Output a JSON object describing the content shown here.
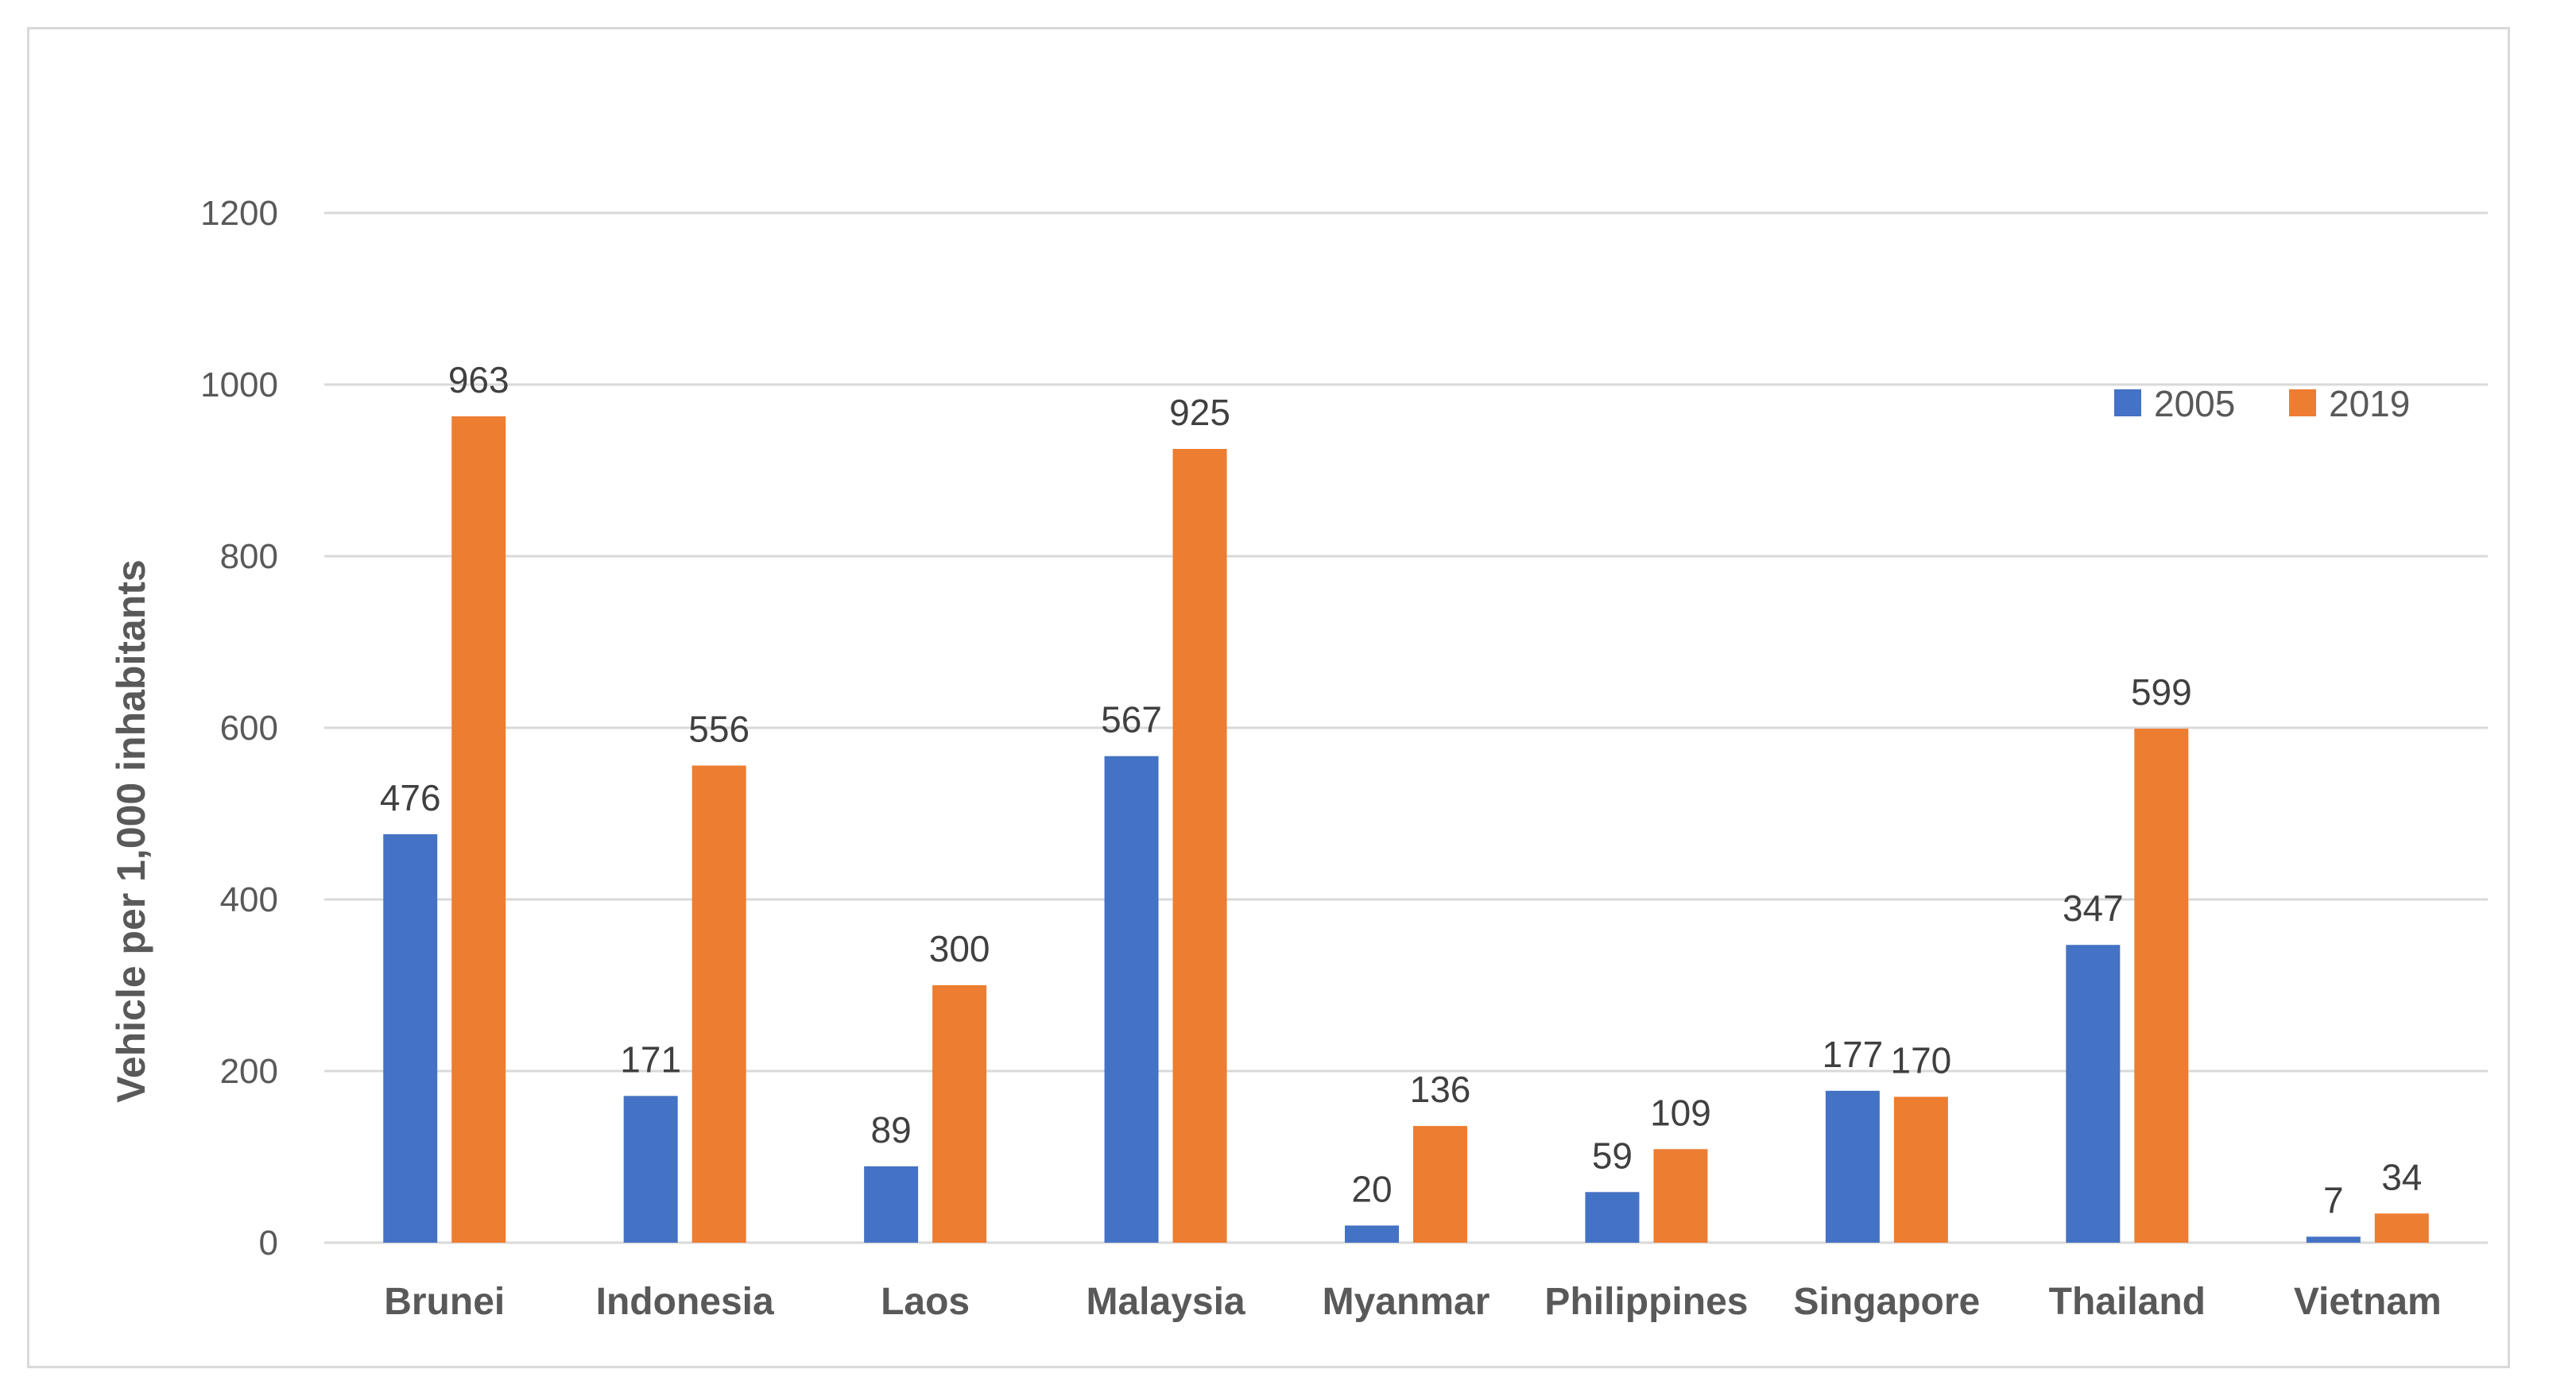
{
  "chart_data": {
    "type": "bar",
    "title": "",
    "xlabel": "",
    "ylabel": "Vehicle per 1,000 inhabitants",
    "ylim": [
      0,
      1200
    ],
    "yticks": [
      0,
      200,
      400,
      600,
      800,
      1000,
      1200
    ],
    "grid": true,
    "legend_position": "top-right",
    "categories": [
      "Brunei",
      "Indonesia",
      "Laos",
      "Malaysia",
      "Myanmar",
      "Philippines",
      "Singapore",
      "Thailand",
      "Vietnam"
    ],
    "series": [
      {
        "name": "2005",
        "color": "#4472c4",
        "values": [
          476,
          171,
          89,
          567,
          20,
          59,
          177,
          347,
          7
        ]
      },
      {
        "name": "2019",
        "color": "#ed7d31",
        "values": [
          963,
          556,
          300,
          925,
          136,
          109,
          170,
          599,
          34
        ]
      }
    ]
  }
}
